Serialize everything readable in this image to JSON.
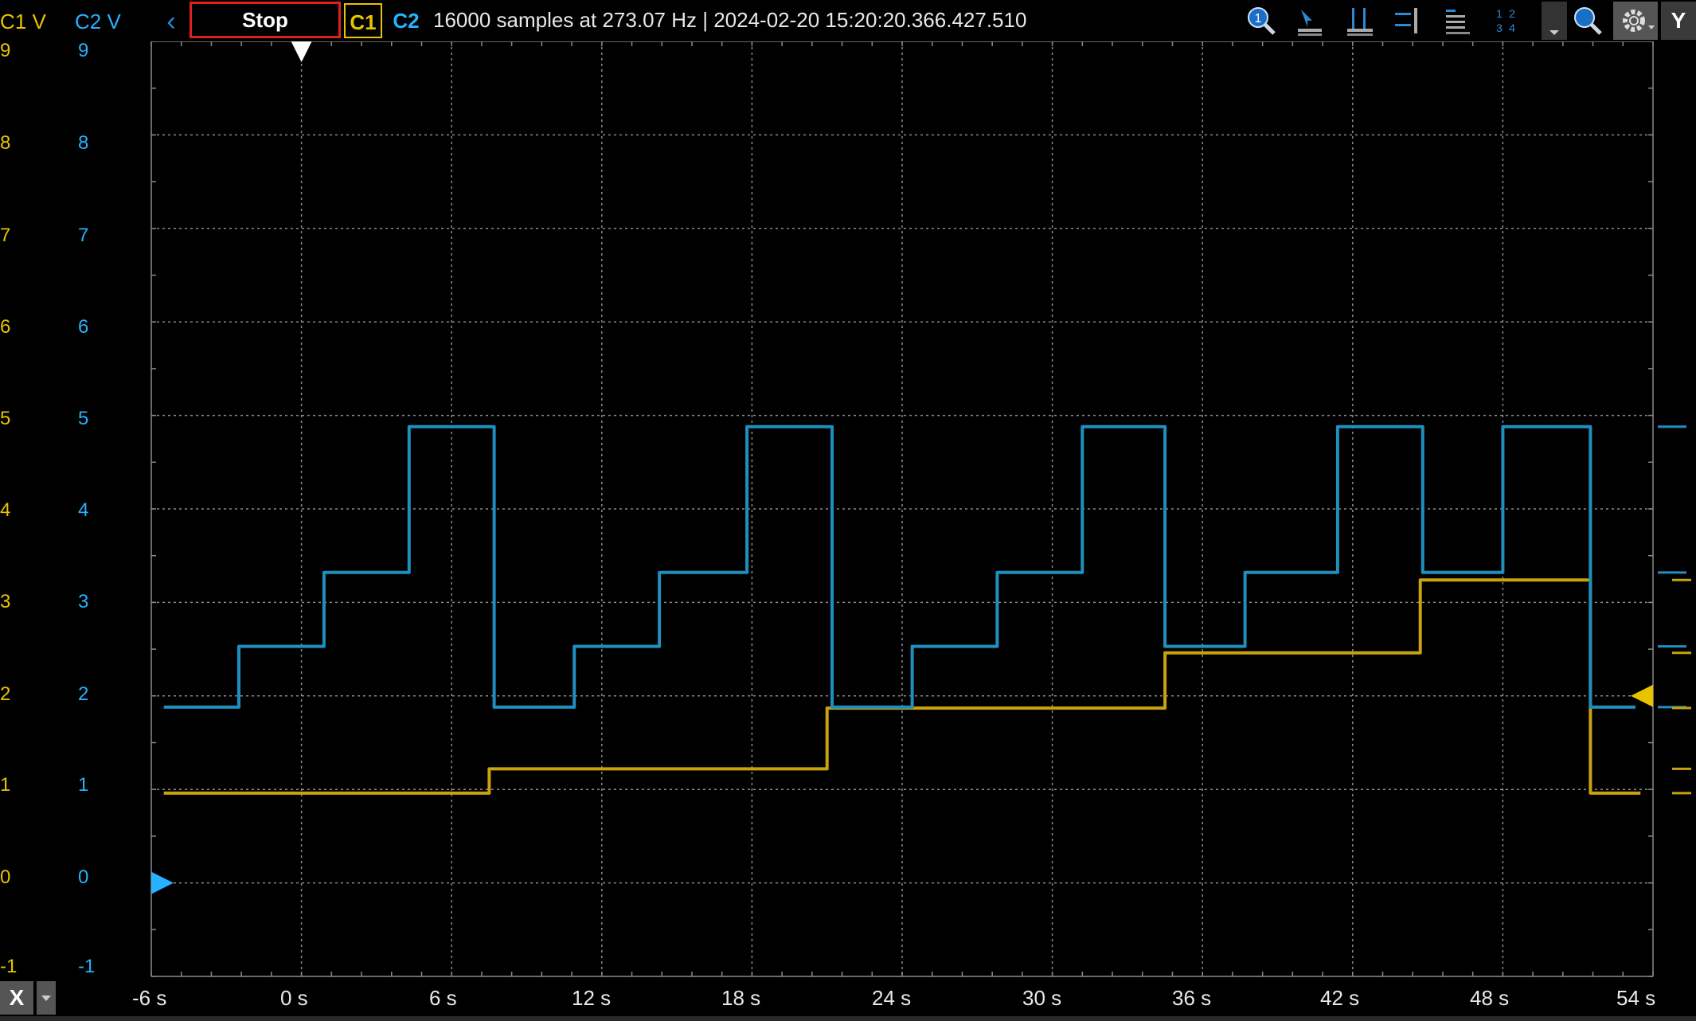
{
  "toolbar": {
    "c1_axis_label": "C1 V",
    "c2_axis_label": "C2 V",
    "back_icon": "chevron-left-icon",
    "stop_label": "Stop",
    "c1_label": "C1",
    "c2_label": "C2",
    "status": "16000 samples at 273.07 Hz  | 2024-02-20 15:20:20.366.427.510",
    "y_label": "Y",
    "icons": [
      "zoom-icon",
      "cursor-arrow-icon",
      "vertical-cursors-icon",
      "horizontal-cursors-icon",
      "stacked-lines-icon",
      "grid-1234-icon",
      "dropdown-icon",
      "magnifier-icon",
      "gear-icon"
    ]
  },
  "y_axis": {
    "c1_ticks": [
      "9",
      "8",
      "7",
      "6",
      "5",
      "4",
      "3",
      "2",
      "1",
      "0",
      "-1"
    ],
    "c2_ticks": [
      "9",
      "8",
      "7",
      "6",
      "5",
      "4",
      "3",
      "2",
      "1",
      "0",
      "-1"
    ]
  },
  "x_axis": {
    "ticks": [
      "-6 s",
      "0 s",
      "6 s",
      "12 s",
      "18 s",
      "24 s",
      "30 s",
      "36 s",
      "42 s",
      "48 s",
      "54 s"
    ],
    "x_button": "X"
  },
  "colors": {
    "c1": "#c9a20e",
    "c2": "#1e8fbe",
    "grid": "#8a8a8a",
    "accent_blue": "#25b2ff",
    "accent_yellow": "#e8c300"
  },
  "chart_data": {
    "type": "line",
    "xlim": [
      -6,
      54
    ],
    "ylim": [
      -1,
      9
    ],
    "grid": true,
    "series": [
      {
        "name": "C1",
        "x": [
          -5.5,
          7.5,
          7.5,
          21,
          21,
          34.5,
          34.5,
          44.7,
          44.7,
          51.5,
          51.5,
          53.5
        ],
        "values": [
          0.96,
          0.96,
          1.22,
          1.22,
          1.87,
          1.87,
          2.46,
          2.46,
          3.24,
          3.24,
          0.96,
          0.96
        ]
      },
      {
        "name": "C2",
        "x": [
          -5.5,
          -2.5,
          -2.5,
          0.9,
          0.9,
          4.3,
          4.3,
          7.7,
          7.7,
          10.9,
          10.9,
          14.3,
          14.3,
          17.8,
          17.8,
          21.2,
          21.2,
          24.4,
          24.4,
          27.8,
          27.8,
          31.2,
          31.2,
          34.5,
          34.5,
          37.7,
          37.7,
          41.4,
          41.4,
          44.8,
          44.8,
          48.0,
          48.0,
          51.5,
          51.5,
          53.3
        ],
        "values": [
          1.88,
          1.88,
          2.53,
          2.53,
          3.32,
          3.32,
          4.88,
          4.88,
          1.88,
          1.88,
          2.53,
          2.53,
          3.32,
          3.32,
          4.88,
          4.88,
          1.88,
          1.88,
          2.53,
          2.53,
          3.32,
          3.32,
          4.88,
          4.88,
          2.53,
          2.53,
          3.32,
          3.32,
          4.88,
          4.88,
          3.32,
          3.32,
          4.88,
          4.88,
          1.88,
          1.88
        ]
      }
    ],
    "markers": {
      "trigger_time": 0,
      "c2_zero": 0,
      "c1_level": 2
    }
  }
}
